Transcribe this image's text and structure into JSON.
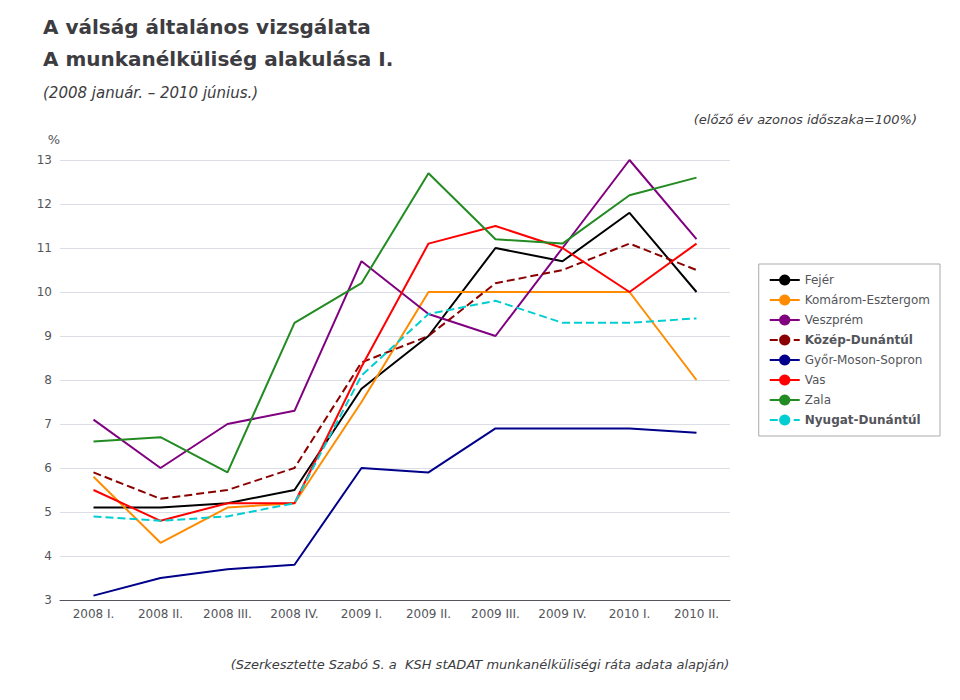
{
  "chart_data": {
    "type": "line",
    "title": "A válság általános vizsgálata",
    "subtitle": "A munkanélküliség alakulása I.",
    "annotations": [
      "(2008 január. – 2010 június.)",
      "(előző év azonos időszaka=100%)",
      "(Szerkesztette Szabó S. a  KSH stADAT munkanélküliségi ráta adata alapján)"
    ],
    "ylabel": "%",
    "categories": [
      "2008 I.",
      "2008 II.",
      "2008 III.",
      "2008 IV.",
      "2009 I.",
      "2009 II.",
      "2009 III.",
      "2009 IV.",
      "2010 I.",
      "2010 II."
    ],
    "series": [
      {
        "name": "Fejér",
        "color": "#000000",
        "line_style": "solid",
        "values": [
          5.1,
          5.1,
          5.2,
          5.5,
          7.8,
          9.0,
          11.0,
          10.7,
          11.8,
          10.0
        ]
      },
      {
        "name": "Komárom-Esztergom",
        "color": "#FF8C00",
        "line_style": "solid",
        "values": [
          5.8,
          4.3,
          5.1,
          5.2,
          7.5,
          10.0,
          10.0,
          10.0,
          10.0,
          8.0
        ]
      },
      {
        "name": "Veszprém",
        "color": "#800080",
        "line_style": "solid",
        "values": [
          7.1,
          6.0,
          7.0,
          7.3,
          10.7,
          9.5,
          9.0,
          11.0,
          13.0,
          11.2
        ]
      },
      {
        "name": "Közép-Dunántúl",
        "color": "#8B0000",
        "line_style": "dashed",
        "values": [
          5.9,
          5.3,
          5.5,
          6.0,
          8.4,
          9.0,
          10.2,
          10.5,
          11.1,
          10.5
        ]
      },
      {
        "name": "Győr-Moson-Sopron",
        "color": "#00008B",
        "line_style": "solid",
        "values": [
          3.1,
          3.5,
          3.7,
          3.8,
          6.0,
          5.9,
          6.9,
          6.9,
          6.9,
          6.8
        ]
      },
      {
        "name": "Vas",
        "color": "#FF0000",
        "line_style": "solid",
        "values": [
          5.5,
          4.8,
          5.2,
          5.2,
          8.3,
          11.1,
          11.5,
          11.0,
          10.0,
          11.1
        ]
      },
      {
        "name": "Zala",
        "color": "#228B22",
        "line_style": "solid",
        "values": [
          6.6,
          6.7,
          5.9,
          9.3,
          10.2,
          12.7,
          11.2,
          11.1,
          12.2,
          12.6
        ]
      },
      {
        "name": "Nyugat-Dunántúl",
        "color": "#00CED1",
        "line_style": "dashed",
        "values": [
          4.9,
          4.8,
          4.9,
          5.2,
          8.1,
          9.5,
          9.8,
          9.3,
          9.3,
          9.4
        ]
      }
    ],
    "ylim": [
      3,
      13
    ],
    "yticks": [
      3,
      4,
      5,
      6,
      7,
      8,
      9,
      10,
      11,
      12,
      13
    ],
    "grid": true,
    "legend": "right"
  }
}
